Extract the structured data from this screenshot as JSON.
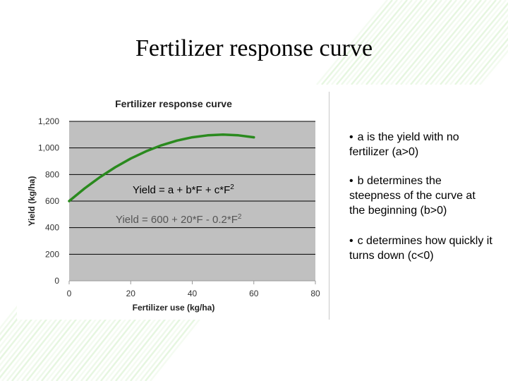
{
  "slide": {
    "title": "Fertilizer response curve"
  },
  "bullets": [
    {
      "text": "a is the yield with no fertilizer (a>0)"
    },
    {
      "text": "b determines the steepness of the curve at the beginning (b>0)"
    },
    {
      "text": "c determines how quickly it turns down (c<0)"
    }
  ],
  "colors": {
    "plot_background": "#c0c0c0",
    "curve": "#2a8a1e",
    "gridline": "#000000",
    "accent_green": "#7ccf5a"
  },
  "chart_data": {
    "type": "line",
    "title": "Fertilizer response curve",
    "xlabel": "Fertilizer use (kg/ha)",
    "ylabel": "Yield (kg/ha)",
    "xlim": [
      0,
      80
    ],
    "ylim": [
      0,
      1200
    ],
    "x_ticks": [
      0,
      20,
      40,
      60,
      80
    ],
    "x_tick_labels": [
      "0",
      "20",
      "40",
      "60",
      "80"
    ],
    "y_ticks": [
      0,
      200,
      400,
      600,
      800,
      1000,
      1200
    ],
    "y_tick_labels": [
      "0",
      "200",
      "400",
      "600",
      "800",
      "1,000",
      "1,200"
    ],
    "grid": "horizontal",
    "legend": "none",
    "series": [
      {
        "x": [
          0,
          5,
          10,
          15,
          20,
          25,
          30,
          35,
          40,
          45,
          50,
          55,
          60
        ],
        "y": [
          600,
          695,
          780,
          855,
          920,
          975,
          1020,
          1055,
          1080,
          1095,
          1100,
          1095,
          1080
        ]
      }
    ],
    "annotations": [
      {
        "text": "Yield = a + b*F + c*F",
        "sup": "2"
      },
      {
        "text": "Yield = 600 + 20*F - 0.2*F",
        "sup": "2"
      }
    ]
  }
}
